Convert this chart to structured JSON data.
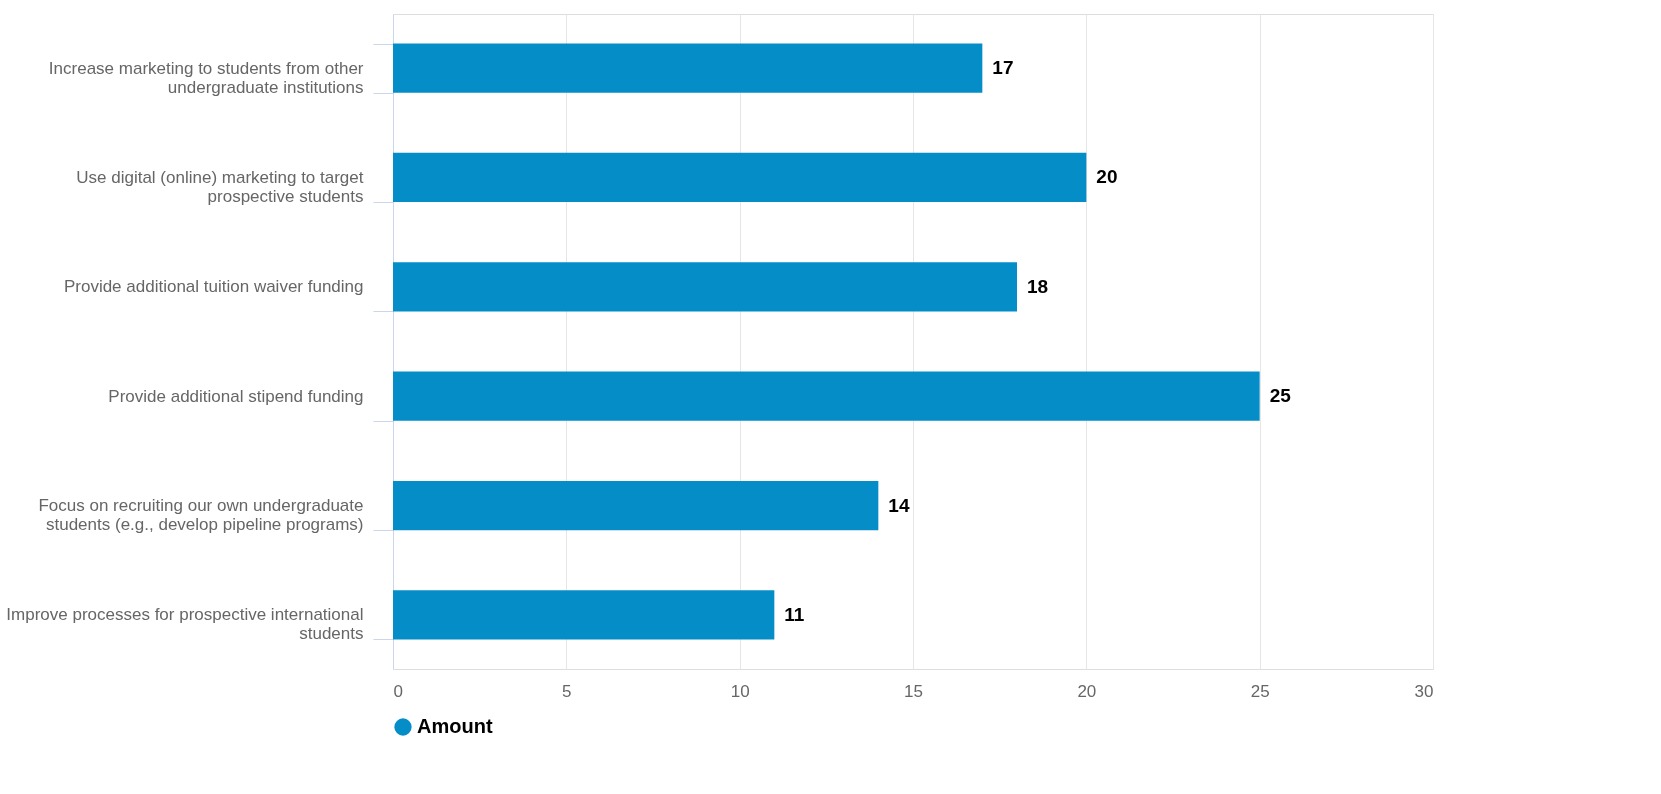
{
  "chart_data": {
    "type": "bar",
    "orientation": "horizontal",
    "categories": [
      "Increase marketing to students from other undergraduate institutions",
      "Use digital (online) marketing to target prospective students",
      "Provide additional tuition waiver funding",
      "Provide additional stipend funding",
      "Focus on recruiting our own undergraduate students (e.g., develop pipeline programs)",
      "Improve processes for prospective international students"
    ],
    "series": [
      {
        "name": "Amount",
        "color": "#058dc7",
        "values": [
          17,
          20,
          18,
          25,
          14,
          11
        ]
      }
    ],
    "xlim": [
      0,
      30
    ],
    "xticks": [
      0,
      5,
      10,
      15,
      20,
      25,
      30
    ],
    "grid": "x",
    "legend": "bottom",
    "data_labels": true
  }
}
